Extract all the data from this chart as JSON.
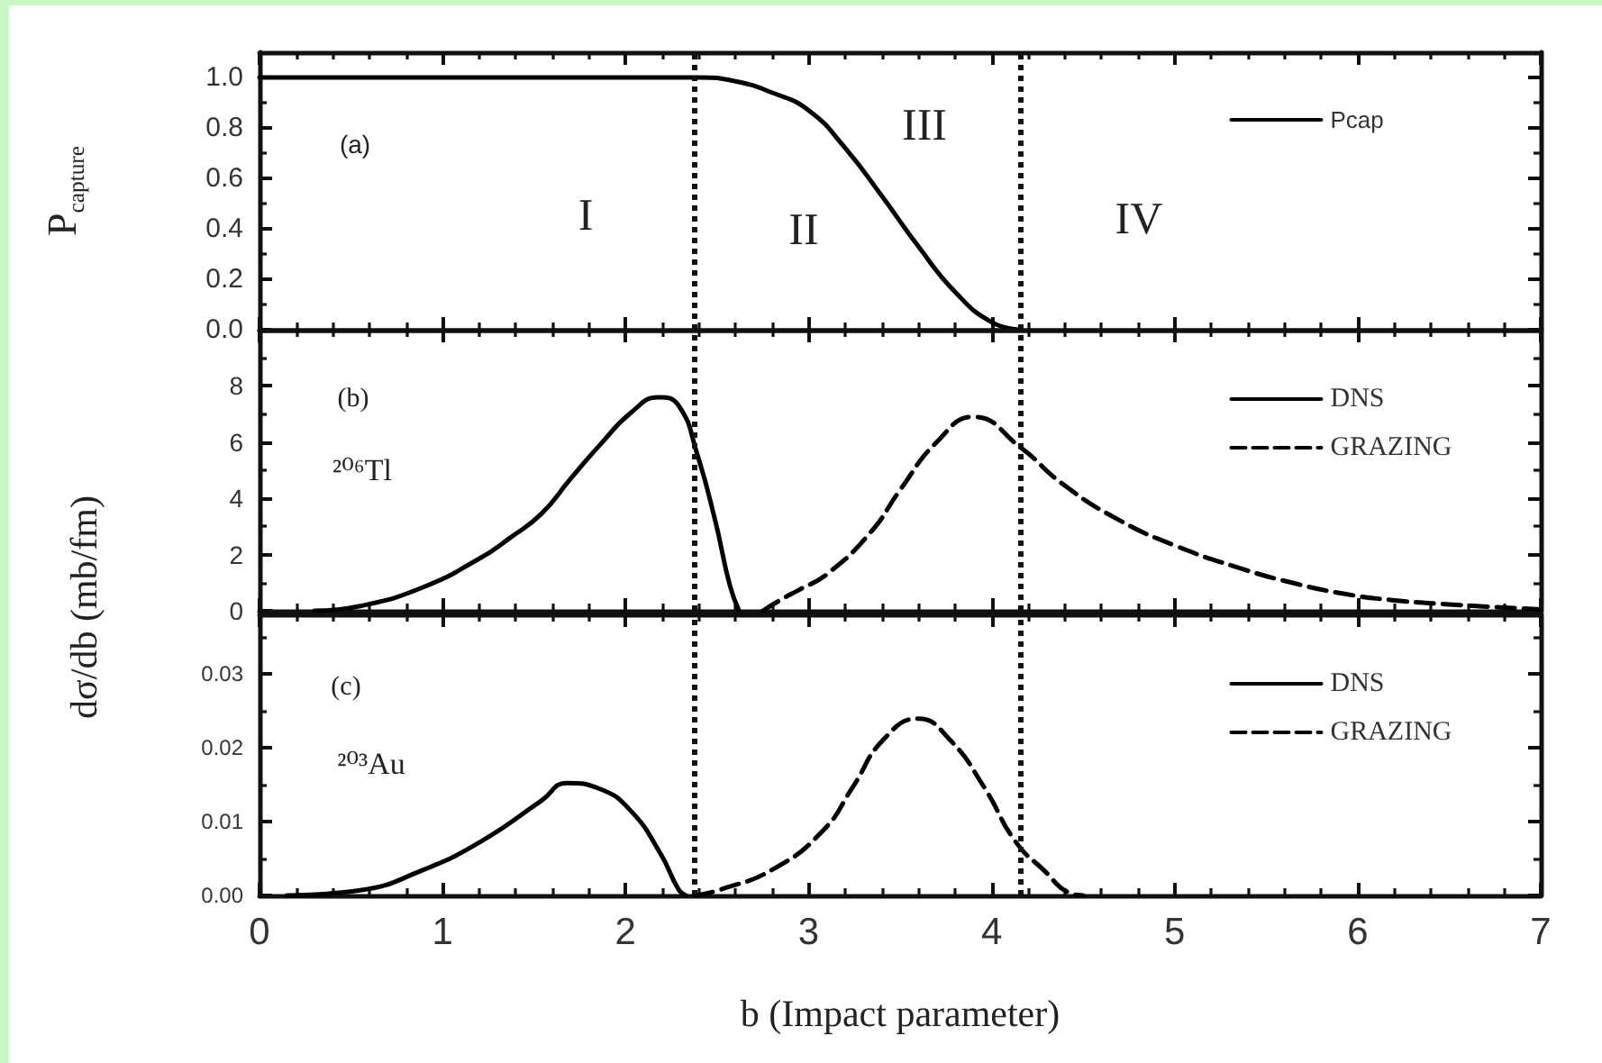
{
  "chart_data": [
    {
      "type": "line",
      "ylabel": "P$_{capture}$",
      "xlim": [
        0,
        7
      ],
      "xticks": [
        0,
        {
          "value": 0.2,
          "label": null
        },
        {
          "value": 0.4,
          "label": null
        },
        {
          "value": 0.6,
          "label": null
        },
        {
          "value": 0.8,
          "label": null
        },
        1,
        {
          "value": 1.2,
          "label": null
        },
        {
          "value": 1.4,
          "label": null
        },
        {
          "value": 1.6,
          "label": null
        },
        {
          "value": 1.8,
          "label": null
        },
        2,
        {
          "value": 2.2,
          "label": null
        },
        {
          "value": 2.4,
          "label": null
        },
        {
          "value": 2.6,
          "label": null
        },
        {
          "value": 2.8,
          "label": null
        },
        3,
        {
          "value": 3.2,
          "label": null
        },
        {
          "value": 3.4,
          "label": null
        },
        {
          "value": 3.6,
          "label": null
        },
        {
          "value": 3.8,
          "label": null
        },
        4,
        {
          "value": 4.2,
          "label": null
        },
        {
          "value": 4.4,
          "label": null
        },
        {
          "value": 4.6,
          "label": null
        },
        {
          "value": 4.8,
          "label": null
        },
        5,
        {
          "value": 5.2,
          "label": null
        },
        {
          "value": 5.4,
          "label": null
        },
        {
          "value": 5.6,
          "label": null
        },
        {
          "value": 5.8,
          "label": null
        },
        6,
        {
          "value": 6.2,
          "label": null
        },
        {
          "value": 6.4,
          "label": null
        },
        {
          "value": 6.6,
          "label": null
        },
        {
          "value": 6.8,
          "label": null
        },
        7
      ],
      "ylim": [
        0,
        1.1
      ],
      "yticks": [
        {
          "value": 0,
          "label": "0.0"
        },
        {
          "value": 0.1,
          "label": null
        },
        0.2,
        {
          "value": 0.3,
          "label": null
        },
        0.4,
        {
          "value": 0.5,
          "label": null
        },
        0.6,
        {
          "value": 0.7,
          "label": null
        },
        0.8,
        {
          "value": 0.9,
          "label": null
        },
        {
          "value": 1,
          "label": "1.0"
        }
      ],
      "tick_labels": "y",
      "legend": "top right",
      "series": [
        {
          "name": "Pcap",
          "color": "#000000",
          "x": [
            0,
            0.5,
            1,
            1.5,
            2,
            2.4,
            2.6,
            2.8,
            3.0,
            3.2,
            3.4,
            3.6,
            3.8,
            4.0,
            4.16
          ],
          "values": [
            1,
            1,
            1,
            1,
            1,
            1,
            0.985,
            0.94,
            0.87,
            0.72,
            0.53,
            0.33,
            0.15,
            0.03,
            0
          ]
        }
      ],
      "ref_lines": [
        {
          "axis": "x",
          "value": 2.38,
          "line_style": "dotted"
        },
        {
          "axis": "x",
          "value": 4.16,
          "line_style": "dotted"
        }
      ],
      "annotations": [
        "(a)",
        "I",
        "II",
        "III",
        "IV"
      ]
    },
    {
      "type": "line",
      "ylabel": "dσ/db (mb/fm)",
      "xlim": [
        0,
        7
      ],
      "xticks": [
        0,
        {
          "value": 0.2,
          "label": null
        },
        {
          "value": 0.4,
          "label": null
        },
        {
          "value": 0.6,
          "label": null
        },
        {
          "value": 0.8,
          "label": null
        },
        1,
        {
          "value": 1.2,
          "label": null
        },
        {
          "value": 1.4,
          "label": null
        },
        {
          "value": 1.6,
          "label": null
        },
        {
          "value": 1.8,
          "label": null
        },
        2,
        {
          "value": 2.2,
          "label": null
        },
        {
          "value": 2.4,
          "label": null
        },
        {
          "value": 2.6,
          "label": null
        },
        {
          "value": 2.8,
          "label": null
        },
        3,
        {
          "value": 3.2,
          "label": null
        },
        {
          "value": 3.4,
          "label": null
        },
        {
          "value": 3.6,
          "label": null
        },
        {
          "value": 3.8,
          "label": null
        },
        4,
        {
          "value": 4.2,
          "label": null
        },
        {
          "value": 4.4,
          "label": null
        },
        {
          "value": 4.6,
          "label": null
        },
        {
          "value": 4.8,
          "label": null
        },
        5,
        {
          "value": 5.2,
          "label": null
        },
        {
          "value": 5.4,
          "label": null
        },
        {
          "value": 5.6,
          "label": null
        },
        {
          "value": 5.8,
          "label": null
        },
        6,
        {
          "value": 6.2,
          "label": null
        },
        {
          "value": 6.4,
          "label": null
        },
        {
          "value": 6.6,
          "label": null
        },
        {
          "value": 6.8,
          "label": null
        },
        7
      ],
      "ylim": [
        0,
        10
      ],
      "yticks": [
        0,
        {
          "value": 1,
          "label": null
        },
        2,
        {
          "value": 3,
          "label": null
        },
        4,
        {
          "value": 5,
          "label": null
        },
        6,
        {
          "value": 7,
          "label": null
        },
        8,
        {
          "value": 9,
          "label": null
        }
      ],
      "tick_labels": "y",
      "legend": "top right",
      "series": [
        {
          "name": "DNS",
          "color": "#000000",
          "x": [
            0.3,
            0.55,
            0.88,
            1.2,
            1.37,
            1.54,
            1.7,
            1.86,
            2.03,
            2.18,
            2.29,
            2.39,
            2.49,
            2.57,
            2.62
          ],
          "values": [
            0,
            0.17,
            0.8,
            1.85,
            2.6,
            3.45,
            4.7,
            5.9,
            7.05,
            7.6,
            7.3,
            5.6,
            3.2,
            0.9,
            0
          ]
        },
        {
          "name": "GRAZING",
          "color": "#000000",
          "line_style": "dashed",
          "x": [
            2.75,
            2.85,
            2.95,
            3.1,
            3.34,
            3.5,
            3.7,
            3.9,
            4.16,
            4.39,
            4.69,
            5.01,
            5.34,
            5.64,
            5.93,
            6.19,
            6.52,
            6.85,
            7.0
          ],
          "values": [
            0,
            0.4,
            0.75,
            1.3,
            2.8,
            4.3,
            6.0,
            6.9,
            5.8,
            4.5,
            3.25,
            2.3,
            1.55,
            1.0,
            0.6,
            0.38,
            0.22,
            0.1,
            0.05
          ]
        }
      ],
      "ref_lines": [
        {
          "axis": "x",
          "value": 2.38,
          "line_style": "dotted"
        },
        {
          "axis": "x",
          "value": 4.16,
          "line_style": "dotted"
        }
      ],
      "annotations": [
        "(b)",
        "²⁰⁶Tl"
      ]
    },
    {
      "type": "line",
      "xlabel": "b (Impact parameter)",
      "xlim": [
        0,
        7
      ],
      "xticks": [
        0,
        {
          "value": 0.2,
          "label": null
        },
        {
          "value": 0.4,
          "label": null
        },
        {
          "value": 0.6,
          "label": null
        },
        {
          "value": 0.8,
          "label": null
        },
        1,
        {
          "value": 1.2,
          "label": null
        },
        {
          "value": 1.4,
          "label": null
        },
        {
          "value": 1.6,
          "label": null
        },
        {
          "value": 1.8,
          "label": null
        },
        2,
        {
          "value": 2.2,
          "label": null
        },
        {
          "value": 2.4,
          "label": null
        },
        {
          "value": 2.6,
          "label": null
        },
        {
          "value": 2.8,
          "label": null
        },
        3,
        {
          "value": 3.2,
          "label": null
        },
        {
          "value": 3.4,
          "label": null
        },
        {
          "value": 3.6,
          "label": null
        },
        {
          "value": 3.8,
          "label": null
        },
        4,
        {
          "value": 4.2,
          "label": null
        },
        {
          "value": 4.4,
          "label": null
        },
        {
          "value": 4.6,
          "label": null
        },
        {
          "value": 4.8,
          "label": null
        },
        5,
        {
          "value": 5.2,
          "label": null
        },
        {
          "value": 5.4,
          "label": null
        },
        {
          "value": 5.6,
          "label": null
        },
        {
          "value": 5.8,
          "label": null
        },
        6,
        {
          "value": 6.2,
          "label": null
        },
        {
          "value": 6.4,
          "label": null
        },
        {
          "value": 6.6,
          "label": null
        },
        {
          "value": 6.8,
          "label": null
        },
        7
      ],
      "ylim": [
        0,
        0.038
      ],
      "yticks": [
        {
          "value": 0,
          "label": "0.00"
        },
        {
          "value": 0.005,
          "label": null
        },
        {
          "value": 0.01,
          "label": "0.01"
        },
        {
          "value": 0.015,
          "label": null
        },
        {
          "value": 0.02,
          "label": "0.02"
        },
        {
          "value": 0.025,
          "label": null
        },
        {
          "value": 0.03,
          "label": "0.03"
        },
        {
          "value": 0.035,
          "label": null
        }
      ],
      "legend": "top right",
      "series": [
        {
          "name": "DNS",
          "color": "#000000",
          "x": [
            0.15,
            0.55,
            0.88,
            1.21,
            1.54,
            1.68,
            1.86,
            2.03,
            2.19,
            2.29,
            2.33
          ],
          "values": [
            0,
            0.0007,
            0.0033,
            0.0073,
            0.0128,
            0.0152,
            0.0144,
            0.0114,
            0.0057,
            0.0008,
            0
          ]
        },
        {
          "name": "GRAZING",
          "color": "#000000",
          "line_style": "dashed",
          "x": [
            2.38,
            2.52,
            2.81,
            3.08,
            3.24,
            3.41,
            3.6,
            3.77,
            3.96,
            4.13,
            4.29,
            4.42,
            4.5
          ],
          "values": [
            0,
            0.0008,
            0.0036,
            0.0088,
            0.0146,
            0.0211,
            0.0239,
            0.0211,
            0.0146,
            0.0073,
            0.0033,
            0.0004,
            0
          ]
        }
      ],
      "ref_lines": [
        {
          "axis": "x",
          "value": 2.38,
          "line_style": "dotted"
        },
        {
          "axis": "x",
          "value": 4.16,
          "line_style": "dotted"
        }
      ],
      "annotations": [
        "(c)",
        "²⁰³Au"
      ]
    }
  ]
}
